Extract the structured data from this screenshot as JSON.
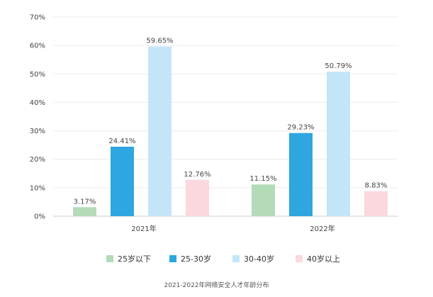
{
  "chart_data": {
    "type": "bar",
    "categories": [
      "2021年",
      "2022年"
    ],
    "series": [
      {
        "name": "25岁以下",
        "values": [
          3.17,
          11.15
        ],
        "labels": [
          "3.17%",
          "11.15%"
        ],
        "color": "#b3dbb8"
      },
      {
        "name": "25-30岁",
        "values": [
          24.41,
          29.23
        ],
        "labels": [
          "24.41%",
          "29.23%"
        ],
        "color": "#2ea6e0"
      },
      {
        "name": "30-40岁",
        "values": [
          59.65,
          50.79
        ],
        "labels": [
          "59.65%",
          "50.79%"
        ],
        "color": "#c4e5f7"
      },
      {
        "name": "40岁以上",
        "values": [
          12.76,
          8.83
        ],
        "labels": [
          "12.76%",
          "8.83%"
        ],
        "color": "#fbd8de"
      }
    ],
    "ylim": [
      0,
      70
    ],
    "yticks": [
      0,
      10,
      20,
      30,
      40,
      50,
      60,
      70
    ],
    "ytick_labels": [
      "0%",
      "10%",
      "20%",
      "30%",
      "40%",
      "50%",
      "60%",
      "70%"
    ],
    "grid": true,
    "legend_position": "bottom",
    "caption": "2021-2022年网络安全人才年龄分布"
  }
}
